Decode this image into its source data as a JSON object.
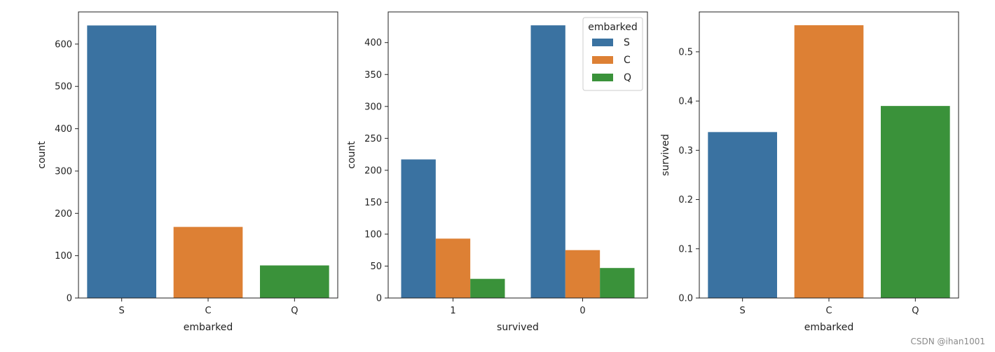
{
  "colors": {
    "S": "#3a72a1",
    "C": "#dd8034",
    "Q": "#3a923a"
  },
  "watermark": "CSDN @ihan1001",
  "chart_data": [
    {
      "type": "bar",
      "categories": [
        "S",
        "C",
        "Q"
      ],
      "values": [
        644,
        168,
        77
      ],
      "xlabel": "embarked",
      "ylabel": "count",
      "ylim": [
        0,
        676
      ],
      "yticks": [
        0,
        100,
        200,
        300,
        400,
        500,
        600
      ],
      "ytick_labels": [
        "0",
        "100",
        "200",
        "300",
        "400",
        "500",
        "600"
      ],
      "grid": false
    },
    {
      "type": "bar",
      "categories": [
        "1",
        "0"
      ],
      "series": [
        {
          "name": "S",
          "values": [
            217,
            427
          ]
        },
        {
          "name": "C",
          "values": [
            93,
            75
          ]
        },
        {
          "name": "Q",
          "values": [
            30,
            47
          ]
        }
      ],
      "xlabel": "survived",
      "ylabel": "count",
      "ylim": [
        0,
        448
      ],
      "yticks": [
        0,
        50,
        100,
        150,
        200,
        250,
        300,
        350,
        400
      ],
      "ytick_labels": [
        "0",
        "50",
        "100",
        "150",
        "200",
        "250",
        "300",
        "350",
        "400"
      ],
      "legend": {
        "title": "embarked",
        "position": "top-right",
        "entries": [
          "S",
          "C",
          "Q"
        ]
      },
      "grid": false
    },
    {
      "type": "bar",
      "categories": [
        "S",
        "C",
        "Q"
      ],
      "values": [
        0.337,
        0.554,
        0.39
      ],
      "xlabel": "embarked",
      "ylabel": "survived",
      "ylim": [
        0,
        0.581
      ],
      "yticks": [
        0,
        0.1,
        0.2,
        0.3,
        0.4,
        0.5
      ],
      "ytick_labels": [
        "0.0",
        "0.1",
        "0.2",
        "0.3",
        "0.4",
        "0.5"
      ],
      "grid": false
    }
  ]
}
